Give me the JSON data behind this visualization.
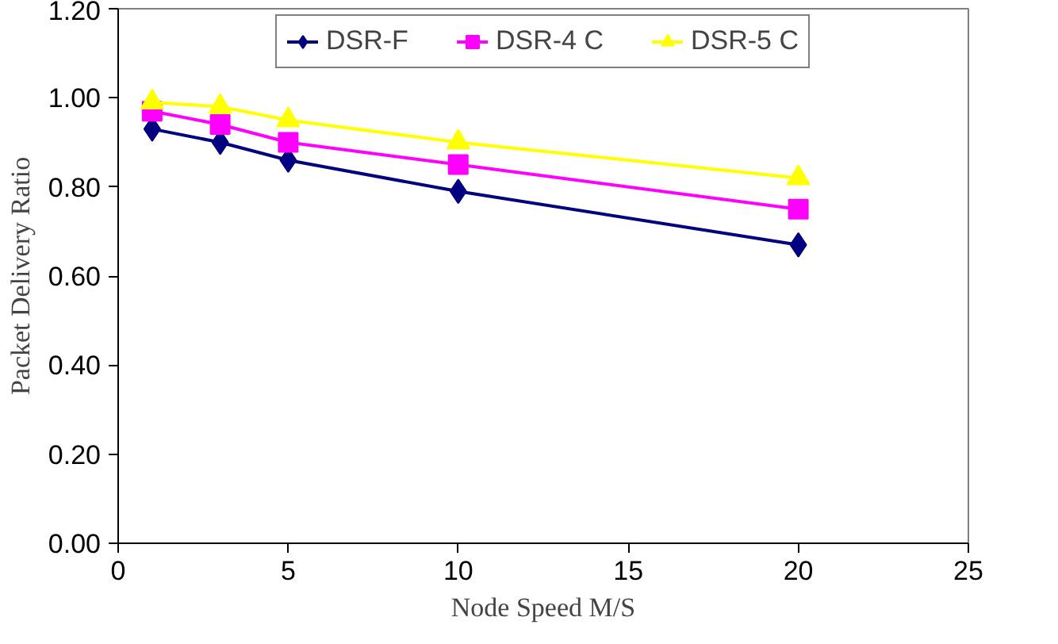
{
  "chart_data": {
    "type": "line",
    "xlabel": "Node Speed M/S",
    "ylabel": "Packet Delivery Ratio",
    "x": [
      1,
      3,
      5,
      10,
      20
    ],
    "series": [
      {
        "name": "DSR-F",
        "color": "#000080",
        "marker": "diamond",
        "values": [
          0.93,
          0.9,
          0.86,
          0.79,
          0.67
        ]
      },
      {
        "name": "DSR-4 C",
        "color": "#ff00ff",
        "marker": "square",
        "values": [
          0.97,
          0.94,
          0.9,
          0.85,
          0.75
        ]
      },
      {
        "name": "DSR-5 C",
        "color": "#ffff00",
        "marker": "triangle",
        "values": [
          0.99,
          0.98,
          0.95,
          0.9,
          0.82
        ]
      }
    ],
    "xlim": [
      0,
      25
    ],
    "xticks": [
      0,
      5,
      10,
      15,
      20,
      25
    ],
    "ylim": [
      0,
      1.2
    ],
    "yticks": [
      {
        "value": 0,
        "label": "0.00"
      },
      {
        "value": 0.2,
        "label": "0.20"
      },
      {
        "value": 0.4,
        "label": "0.40"
      },
      {
        "value": 0.6,
        "label": "0.60"
      },
      {
        "value": 0.8,
        "label": "0.80"
      },
      {
        "value": 1.0,
        "label": "1.00"
      },
      {
        "value": 1.2,
        "label": "1.20"
      }
    ],
    "grid": false,
    "legend": "top",
    "line_style": "solid"
  }
}
